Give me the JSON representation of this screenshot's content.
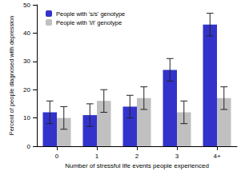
{
  "chart_data": {
    "type": "bar",
    "categories": [
      "0",
      "1",
      "2",
      "3",
      "4+"
    ],
    "x_label": "Number of stressful life events people experienced",
    "y_label": "Percent of people diagnosed with depression",
    "series": [
      {
        "name": "People with 's/s' genotype",
        "color": "#3333cc",
        "values": [
          12,
          11,
          14,
          27,
          43
        ],
        "errors": [
          4,
          4,
          4,
          4,
          4
        ]
      },
      {
        "name": "People with 'l/l' genotype",
        "color": "#c0c0c0",
        "values": [
          10,
          16,
          17,
          12,
          17
        ],
        "errors": [
          4,
          4,
          4,
          4,
          4
        ]
      }
    ],
    "ylim": [
      0,
      50
    ],
    "yticks": [
      0,
      10,
      20,
      30,
      40,
      50
    ],
    "grid": false,
    "legend": "upper left"
  }
}
